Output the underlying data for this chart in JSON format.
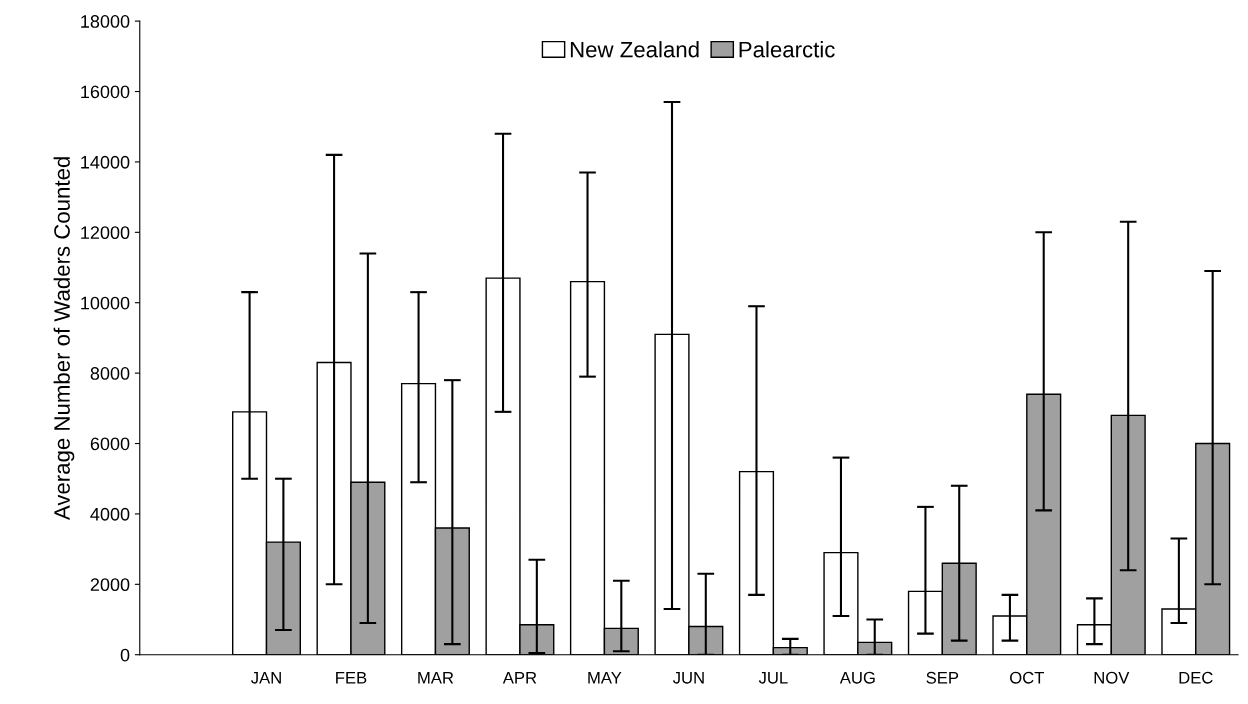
{
  "chart_data": {
    "type": "bar",
    "ylabel": "Average Number of Waders Counted",
    "categories": [
      null,
      "JAN",
      "FEB",
      "MAR",
      "APR",
      "MAY",
      "JUN",
      "JUL",
      "AUG",
      "SEP",
      "OCT",
      "NOV",
      "DEC"
    ],
    "series": [
      {
        "name": "New Zealand",
        "color": "#ffffff",
        "values": [
          null,
          6900,
          8300,
          7700,
          10700,
          10600,
          9100,
          5200,
          2900,
          1800,
          1100,
          850,
          1300
        ],
        "errors": [
          null,
          [
            5000,
            10300
          ],
          [
            2000,
            14200
          ],
          [
            4900,
            10300
          ],
          [
            6900,
            14800
          ],
          [
            7900,
            13700
          ],
          [
            1300,
            15700
          ],
          [
            1700,
            9900
          ],
          [
            1100,
            5600
          ],
          [
            600,
            4200
          ],
          [
            400,
            1700
          ],
          [
            300,
            1600
          ],
          [
            900,
            3300
          ]
        ]
      },
      {
        "name": "Palearctic",
        "color": "#a0a0a0",
        "values": [
          null,
          3200,
          4900,
          3600,
          850,
          750,
          800,
          200,
          350,
          2600,
          7400,
          6800,
          6000
        ],
        "errors": [
          null,
          [
            700,
            5000
          ],
          [
            900,
            11400
          ],
          [
            300,
            7800
          ],
          [
            50,
            2700
          ],
          [
            100,
            2100
          ],
          [
            0,
            2300
          ],
          [
            0,
            450
          ],
          [
            0,
            1000
          ],
          [
            400,
            4800
          ],
          [
            4100,
            12000
          ],
          [
            2400,
            12300
          ],
          [
            2000,
            10900
          ]
        ]
      }
    ],
    "ylim": [
      0,
      18000
    ],
    "yticks": [
      0,
      2000,
      4000,
      6000,
      8000,
      10000,
      12000,
      14000,
      16000,
      18000
    ],
    "grid": false,
    "legend": "top"
  }
}
